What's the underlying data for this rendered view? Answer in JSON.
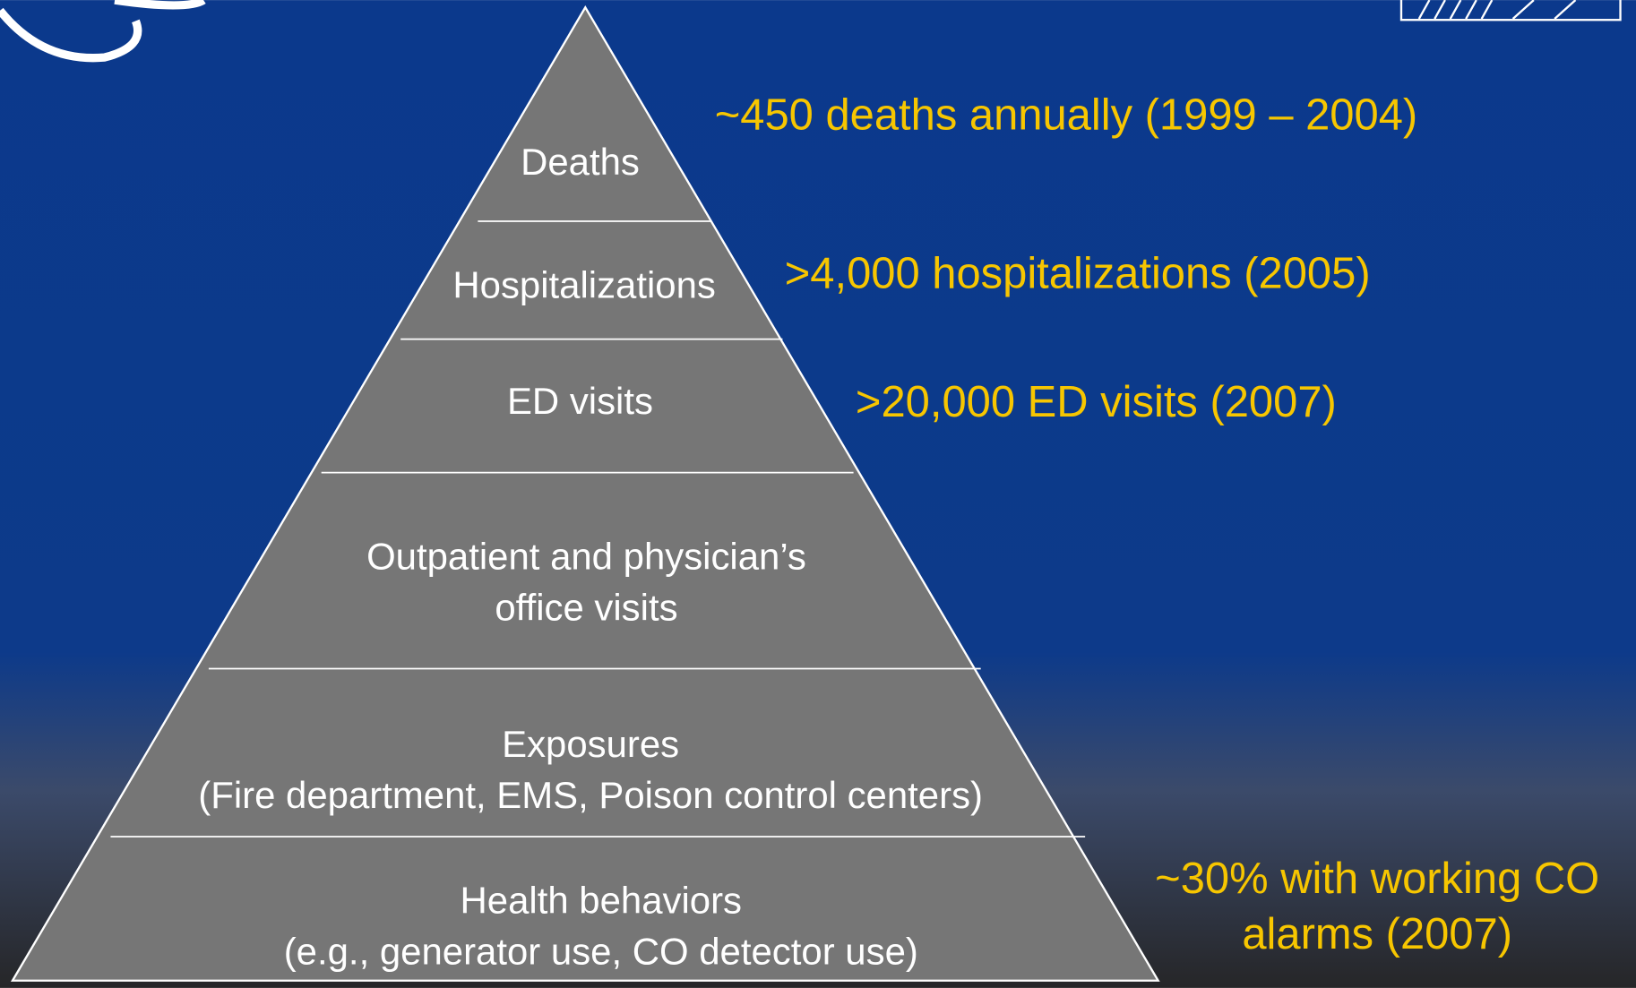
{
  "levels": [
    {
      "label": [
        "Deaths"
      ]
    },
    {
      "label": [
        "Hospitalizations"
      ]
    },
    {
      "label": [
        "ED visits"
      ]
    },
    {
      "label": [
        "Outpatient and physician’s",
        "office visits"
      ]
    },
    {
      "label": [
        "Exposures",
        "(Fire department, EMS, Poison control centers)"
      ]
    },
    {
      "label": [
        "Health behaviors",
        "(e.g., generator use, CO detector use)"
      ]
    }
  ],
  "annotations": [
    {
      "text": [
        "~450 deaths annually (1999 – 2004)"
      ]
    },
    {
      "text": [
        ">4,000 hospitalizations (2005)"
      ]
    },
    {
      "text": [
        ">20,000 ED visits (2007)"
      ]
    },
    {
      "text": [
        "~30% with working CO",
        "alarms (2007)"
      ]
    }
  ]
}
